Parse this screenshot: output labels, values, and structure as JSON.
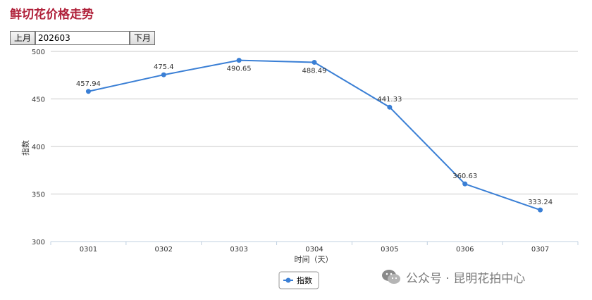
{
  "title": "鲜切花价格走势",
  "controls": {
    "prev_label": "上月",
    "month_value": "202603",
    "next_label": "下月"
  },
  "watermark": {
    "icon": "wechat-icon",
    "text": "公众号 · 昆明花拍中心"
  },
  "chart_data": {
    "type": "line",
    "categories": [
      "0301",
      "0302",
      "0303",
      "0304",
      "0305",
      "0306",
      "0307"
    ],
    "series": [
      {
        "name": "指数",
        "values": [
          457.94,
          475.4,
          490.65,
          488.49,
          441.33,
          360.63,
          333.24
        ]
      }
    ],
    "value_labels": [
      "457.94",
      "475.4",
      "490.65",
      "488.49",
      "441.33",
      "360.63",
      "333.24"
    ],
    "xlabel": "时间（天）",
    "ylabel": "指数",
    "ylim": [
      300,
      500
    ],
    "yticks": [
      "300",
      "350",
      "400",
      "450",
      "500"
    ],
    "grid": true,
    "legend": "bottom-center",
    "color": "#3a7fd5"
  }
}
